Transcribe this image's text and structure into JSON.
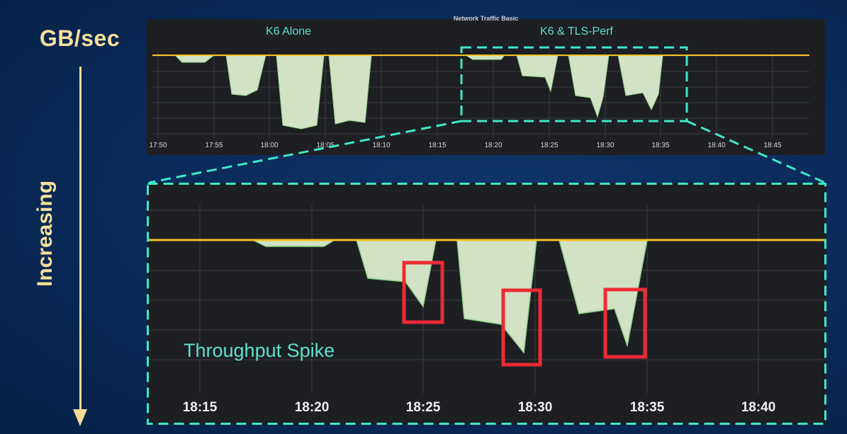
{
  "left_labels": {
    "unit": "GB/sec",
    "direction": "Increasing"
  },
  "colors": {
    "background": "#0a2a57",
    "accent": "#f6df9a",
    "highlight": "#3ee8c8",
    "spike_box": "#ee2b35",
    "area": "#d3e2c4",
    "panel": "#1e1f22"
  },
  "chart_data": [
    {
      "type": "area",
      "panel": "overview",
      "title": "Network Traffic Basic",
      "x": [
        "17:50",
        "17:55",
        "18:00",
        "18:05",
        "18:10",
        "18:15",
        "18:20",
        "18:25",
        "18:30",
        "18:35",
        "18:40",
        "18:45"
      ],
      "annotations": [
        "K6 Alone",
        "K6 & TLS-Perf"
      ],
      "dips": [
        {
          "from": "17:52",
          "to": "17:55",
          "depth": 0.1
        },
        {
          "from": "17:57",
          "to": "17:59",
          "depth": 0.55
        },
        {
          "from": "18:00",
          "to": "18:02",
          "depth": 0.95
        },
        {
          "from": "18:04",
          "to": "18:06",
          "depth": 0.9
        },
        {
          "from": "18:17",
          "to": "18:20",
          "depth": 0.05
        },
        {
          "from": "18:22",
          "to": "18:25",
          "depth": 0.45
        },
        {
          "from": "18:26",
          "to": "18:30",
          "depth": 0.8
        },
        {
          "from": "18:31",
          "to": "18:35",
          "depth": 0.75
        }
      ],
      "zoom_window": [
        "18:17",
        "18:37"
      ],
      "grid": true
    },
    {
      "type": "area",
      "panel": "zoomed",
      "x": [
        "18:15",
        "18:20",
        "18:25",
        "18:30",
        "18:35",
        "18:40"
      ],
      "annotations": [
        "Throughput Spike"
      ],
      "dips": [
        {
          "from": "18:17",
          "to": "18:20",
          "depth": 0.05
        },
        {
          "from": "18:22",
          "to": "18:25",
          "depth": 0.6
        },
        {
          "from": "18:26",
          "to": "18:30",
          "depth": 1.0
        },
        {
          "from": "18:31",
          "to": "18:35",
          "depth": 0.9
        }
      ],
      "spike_boxes": [
        "18:25",
        "18:29",
        "18:34"
      ],
      "grid": true
    }
  ]
}
